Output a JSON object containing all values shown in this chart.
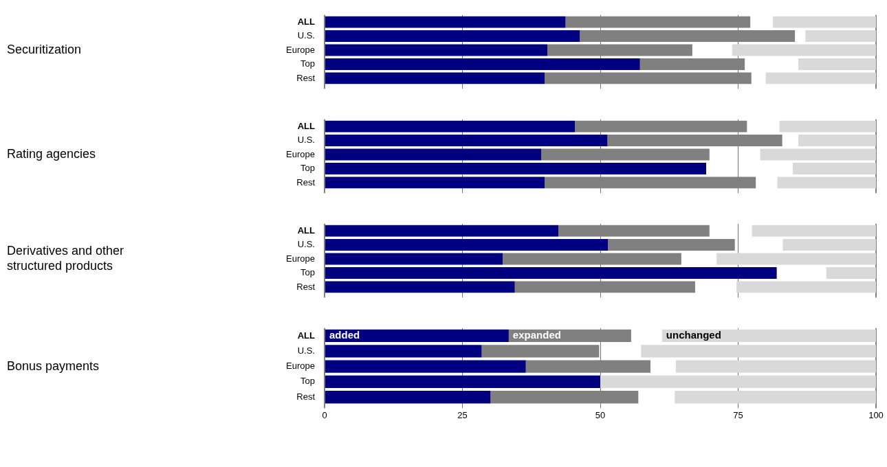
{
  "chart_data": [
    {
      "type": "bar",
      "ylabel": "Securitization",
      "orientation": "horizontal",
      "categories": [
        "ALL",
        "U.S.",
        "Europe",
        "Top",
        "Rest"
      ],
      "xlim": [
        0,
        100
      ],
      "xticks": [
        0,
        25,
        50,
        75,
        100
      ],
      "grid": "x",
      "legend": false,
      "tick_labels": "y",
      "series": [
        {
          "color": "#000080",
          "values": [
            43.7,
            46.3,
            40.4,
            57.2,
            39.9
          ],
          "base": [
            0,
            0,
            0,
            0,
            0
          ]
        },
        {
          "color": "#808080",
          "values": [
            33.5,
            39.0,
            26.3,
            19.0,
            37.5
          ],
          "base": [
            43.7,
            46.3,
            40.4,
            57.2,
            39.9
          ]
        },
        {
          "color": "#d9d9d9",
          "values": [
            18.7,
            12.8,
            26.1,
            14.1,
            20.0
          ],
          "base": [
            81.3,
            87.2,
            73.9,
            85.9,
            80.0
          ]
        }
      ]
    },
    {
      "type": "bar",
      "ylabel": "Rating agencies",
      "orientation": "horizontal",
      "categories": [
        "ALL",
        "U.S.",
        "Europe",
        "Top",
        "Rest"
      ],
      "xlim": [
        0,
        100
      ],
      "xticks": [
        0,
        25,
        50,
        75,
        100
      ],
      "grid": "x",
      "legend": false,
      "tick_labels": "y",
      "series": [
        {
          "color": "#000080",
          "values": [
            45.4,
            51.3,
            39.3,
            69.2,
            39.9
          ],
          "base": [
            0,
            0,
            0,
            0,
            0
          ]
        },
        {
          "color": "#808080",
          "values": [
            31.2,
            31.7,
            30.5,
            null,
            38.3
          ],
          "base": [
            45.4,
            51.3,
            39.3,
            null,
            39.9
          ]
        },
        {
          "color": "#d9d9d9",
          "values": [
            17.5,
            14.1,
            21.0,
            15.1,
            17.9
          ],
          "base": [
            82.5,
            85.9,
            79.0,
            84.9,
            82.1
          ]
        }
      ]
    },
    {
      "type": "bar",
      "ylabel": "Derivatives and other structured products",
      "orientation": "horizontal",
      "categories": [
        "ALL",
        "U.S.",
        "Europe",
        "Top",
        "Rest"
      ],
      "xlim": [
        0,
        100
      ],
      "xticks": [
        0,
        25,
        50,
        75,
        100
      ],
      "grid": "x",
      "legend": false,
      "tick_labels": "y",
      "series": [
        {
          "color": "#000080",
          "values": [
            42.4,
            51.4,
            32.3,
            82.0,
            34.5
          ],
          "base": [
            0,
            0,
            0,
            0,
            0
          ]
        },
        {
          "color": "#808080",
          "values": [
            27.4,
            23.0,
            32.4,
            null,
            32.7
          ],
          "base": [
            42.4,
            51.4,
            32.3,
            null,
            34.5
          ]
        },
        {
          "color": "#d9d9d9",
          "values": [
            22.5,
            16.9,
            28.9,
            9.0,
            25.3
          ],
          "base": [
            77.5,
            83.1,
            71.1,
            91.0,
            74.7
          ]
        }
      ]
    },
    {
      "type": "bar",
      "ylabel": "Bonus payments",
      "orientation": "horizontal",
      "categories": [
        "ALL",
        "U.S.",
        "Europe",
        "Top",
        "Rest"
      ],
      "xlim": [
        0,
        100
      ],
      "xticks": [
        0,
        25,
        50,
        75,
        100
      ],
      "grid": "x",
      "legend": false,
      "series": [
        {
          "name": "added",
          "color": "#000080",
          "values": [
            33.4,
            28.5,
            36.5,
            50.0,
            30.1
          ],
          "base": [
            0,
            0,
            0,
            0,
            0
          ]
        },
        {
          "name": "expanded",
          "color": "#808080",
          "values": [
            22.2,
            21.3,
            22.6,
            null,
            26.8
          ],
          "base": [
            33.4,
            28.5,
            36.5,
            null,
            30.1
          ]
        },
        {
          "name": "unchanged",
          "color": "#d9d9d9",
          "values": [
            38.8,
            42.6,
            36.3,
            50.0,
            36.5
          ],
          "base": [
            61.2,
            57.4,
            63.7,
            50.0,
            63.5
          ]
        }
      ]
    }
  ]
}
